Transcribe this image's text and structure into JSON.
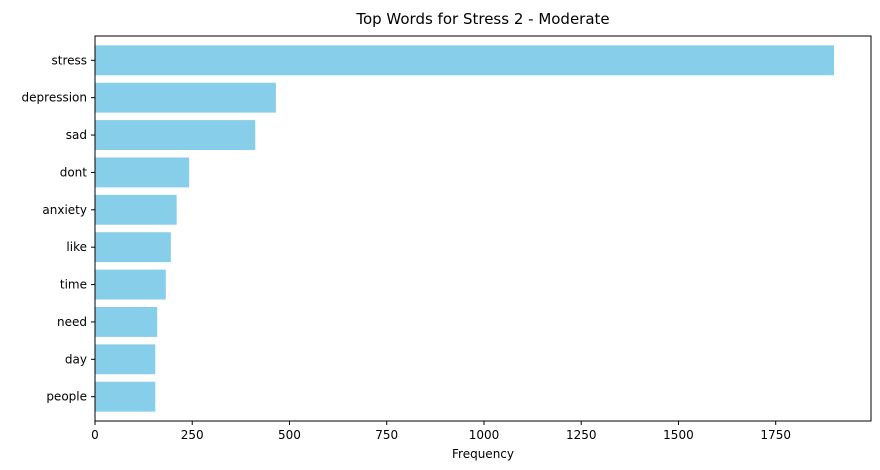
{
  "chart_data": {
    "type": "bar",
    "orientation": "horizontal",
    "title": "Top Words for Stress 2 - Moderate",
    "xlabel": "Frequency",
    "ylabel": "",
    "categories": [
      "stress",
      "depression",
      "sad",
      "dont",
      "anxiety",
      "like",
      "time",
      "need",
      "day",
      "people"
    ],
    "values": [
      1900,
      465,
      412,
      242,
      210,
      195,
      182,
      160,
      155,
      155
    ],
    "xlim": [
      0,
      1995
    ],
    "xticks": [
      0,
      250,
      500,
      750,
      1000,
      1250,
      1500,
      1750
    ],
    "bar_color": "#87CEEB",
    "grid": false,
    "legend": "none"
  }
}
